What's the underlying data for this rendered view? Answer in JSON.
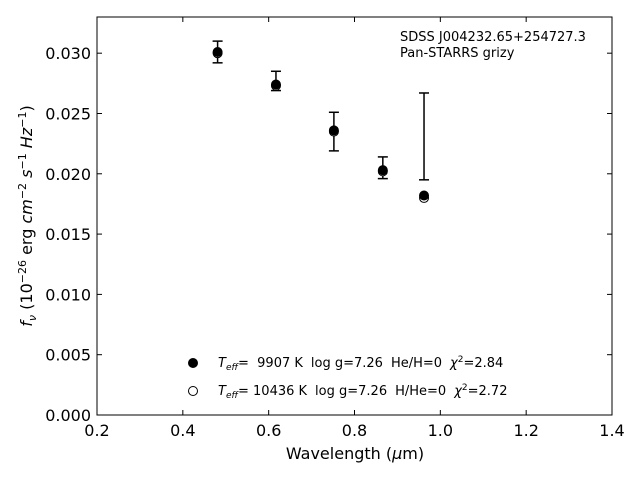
{
  "chart_data": {
    "type": "scatter",
    "title": "",
    "xlabel": "Wavelength (μm)",
    "ylabel": "f_ν (10^−26 erg cm^−2 s^−1 Hz^−1)",
    "xlim": [
      0.2,
      1.4
    ],
    "ylim": [
      0.0,
      0.033
    ],
    "x_ticks": [
      0.2,
      0.4,
      0.6,
      0.8,
      1.0,
      1.2,
      1.4
    ],
    "x_tick_labels": [
      "0.2",
      "0.4",
      "0.6",
      "0.8",
      "1.0",
      "1.2",
      "1.4"
    ],
    "y_ticks": [
      0.0,
      0.005,
      0.01,
      0.015,
      0.02,
      0.025,
      0.03
    ],
    "y_tick_labels": [
      "0.000",
      "0.005",
      "0.010",
      "0.015",
      "0.020",
      "0.025",
      "0.030"
    ],
    "grid": false,
    "annotation": [
      "SDSS J004232.65+254727.3",
      "Pan-STARRS grizy"
    ],
    "observed": {
      "x": [
        0.481,
        0.617,
        0.752,
        0.866,
        0.962
      ],
      "y": [
        0.0301,
        0.0277,
        0.0235,
        0.0205,
        0.0231
      ],
      "err": [
        0.0009,
        0.0008,
        0.0016,
        0.0009,
        0.0036
      ]
    },
    "series": [
      {
        "marker": "filled-circle",
        "x": [
          0.481,
          0.617,
          0.752,
          0.866,
          0.962
        ],
        "y": [
          0.0301,
          0.0274,
          0.0236,
          0.0203,
          0.0182
        ]
      },
      {
        "marker": "open-circle",
        "x": [
          0.481,
          0.617,
          0.752,
          0.866,
          0.962
        ],
        "y": [
          0.03,
          0.0273,
          0.0235,
          0.0202,
          0.018
        ]
      }
    ],
    "legend": {
      "placement": "lower-center",
      "entries": [
        {
          "marker": "filled-circle",
          "teff_label": "T",
          "teff_sub": "eff",
          "teff_value": "=  9907 K",
          "logg": "log g=7.26",
          "comp": "He/H=0",
          "chi_label": "χ",
          "chi_sup": "2",
          "chi_value": "=2.84"
        },
        {
          "marker": "open-circle",
          "teff_label": "T",
          "teff_sub": "eff",
          "teff_value": "= 10436 K",
          "logg": "log g=7.26",
          "comp": "H/He=0",
          "chi_label": "χ",
          "chi_sup": "2",
          "chi_value": "=2.72"
        }
      ]
    }
  },
  "ylabel_parts": {
    "f": "f",
    "nu": "ν",
    "open": " (10",
    "e1": "−26",
    "erg": " erg ",
    "cm": "cm",
    "e2": "−2",
    "s": "s",
    "e3": "−1",
    "hz": "Hz",
    "e4": "−1",
    "close": ")"
  },
  "xlabel_parts": {
    "text": "Wavelength (",
    "mu": "μ",
    "m": "m",
    "close": ")"
  }
}
